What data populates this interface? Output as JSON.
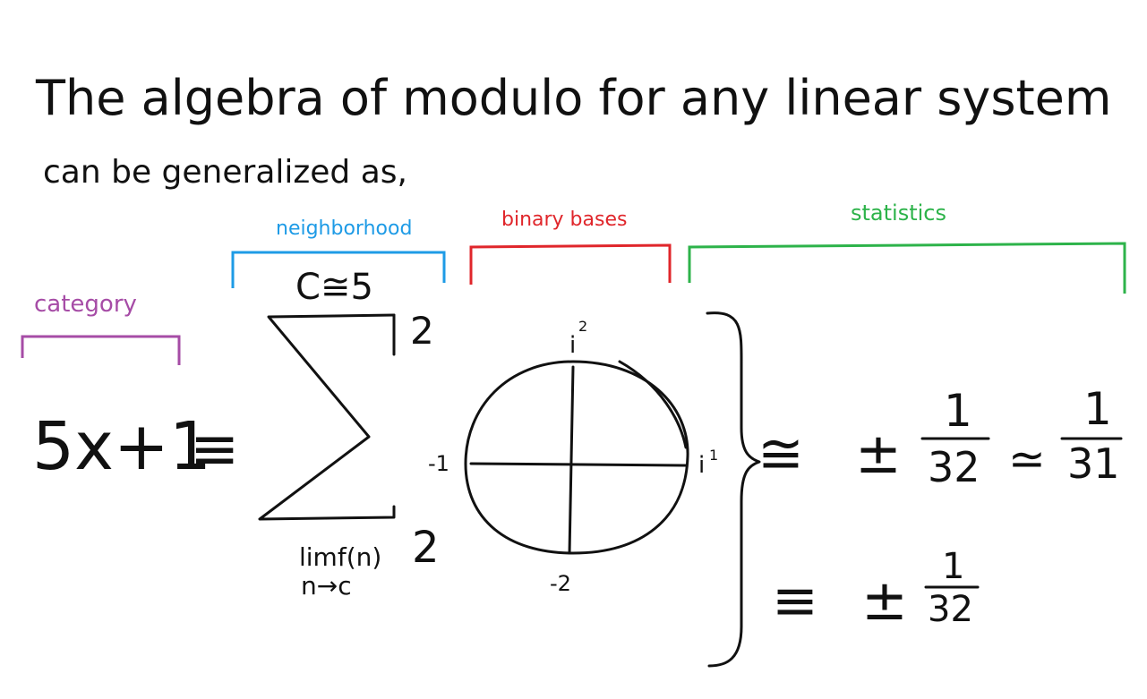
{
  "heading": {
    "line1": "The algebra of modulo for any linear system",
    "line2": "can be generalized as,"
  },
  "labels": {
    "category": "category",
    "neighborhood": "neighborhood",
    "binary_bases": "binary bases",
    "statistics": "statistics"
  },
  "colors": {
    "ink": "#111111",
    "category": "#a64ca6",
    "neighborhood": "#1e9be6",
    "binary_bases": "#e0262b",
    "statistics": "#2db34a"
  },
  "equation": {
    "lhs": "5x+1",
    "equiv": "≡",
    "sum_upper_index": "C≅5",
    "sum_upper_limit": "2",
    "sum_lower_limit": "2",
    "lim_expr": "limf(n)",
    "lim_sub": "n→c",
    "circle_top": "i",
    "circle_top_exp": "2",
    "circle_left": "-1",
    "circle_right": "i",
    "circle_right_exp": "1",
    "circle_bottom": "-2",
    "approx": "≅",
    "pm": "±",
    "frac1_num": "1",
    "frac1_den": "32",
    "approx2": "≃",
    "frac2_num": "1",
    "frac2_den": "31",
    "equiv2": "≡",
    "pm2": "±",
    "frac3_num": "1",
    "frac3_den": "32"
  }
}
